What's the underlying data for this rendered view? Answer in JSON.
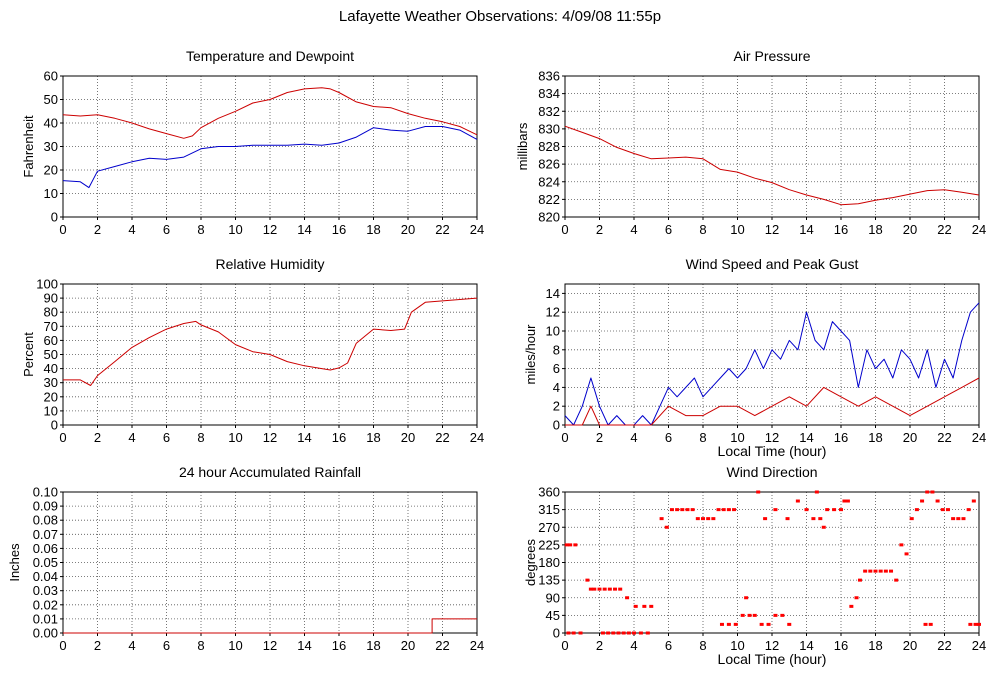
{
  "page": {
    "title": "Lafayette Weather Observations: 4/09/08 11:55p"
  },
  "chart_data": [
    {
      "id": "temp",
      "type": "line",
      "title": "Temperature and Dewpoint",
      "xlabel": "",
      "ylabel": "Fahrenheit",
      "xlim": [
        0,
        24
      ],
      "ylim": [
        0,
        60
      ],
      "xticks": [
        0,
        2,
        4,
        6,
        8,
        10,
        12,
        14,
        16,
        18,
        20,
        22,
        24
      ],
      "yticks": [
        0,
        10,
        20,
        30,
        40,
        50,
        60
      ],
      "ytick_labels": [
        "0",
        "10",
        "20",
        "30",
        "40",
        "50",
        "60"
      ],
      "grid": true,
      "series": [
        {
          "color": "#cc0000",
          "x": [
            0,
            1,
            2,
            3,
            4,
            5,
            6,
            7,
            7.5,
            8,
            9,
            10,
            11,
            12,
            13,
            14,
            15,
            15.5,
            16,
            17,
            18,
            19,
            20,
            21,
            22,
            23,
            24
          ],
          "y": [
            43.5,
            43,
            43.5,
            42,
            40,
            37.5,
            35.5,
            33.5,
            34.5,
            38,
            42,
            45,
            48.5,
            50,
            53,
            54.5,
            55,
            54.5,
            53,
            49,
            47,
            46.5,
            44,
            42,
            40.5,
            38.5,
            35
          ]
        },
        {
          "color": "#0000cc",
          "x": [
            0,
            1,
            1.5,
            2,
            3,
            4,
            5,
            6,
            7,
            8,
            9,
            10,
            11,
            12,
            13,
            14,
            15,
            16,
            17,
            18,
            19,
            20,
            21,
            22,
            23,
            24
          ],
          "y": [
            15.5,
            15,
            12.5,
            19.5,
            21.5,
            23.5,
            25,
            24.5,
            25.5,
            29,
            30,
            30,
            30.5,
            30.5,
            30.5,
            31,
            30.5,
            31.5,
            34,
            38,
            37,
            36.5,
            38.5,
            38.5,
            37,
            33
          ]
        }
      ]
    },
    {
      "id": "pressure",
      "type": "line",
      "title": "Air Pressure",
      "xlabel": "",
      "ylabel": "millibars",
      "xlim": [
        0,
        24
      ],
      "ylim": [
        820,
        836
      ],
      "xticks": [
        0,
        2,
        4,
        6,
        8,
        10,
        12,
        14,
        16,
        18,
        20,
        22,
        24
      ],
      "yticks": [
        820,
        822,
        824,
        826,
        828,
        830,
        832,
        834,
        836
      ],
      "ytick_labels": [
        "820",
        "822",
        "824",
        "826",
        "828",
        "830",
        "832",
        "834",
        "836"
      ],
      "grid": true,
      "series": [
        {
          "color": "#cc0000",
          "x": [
            0,
            1,
            2,
            3,
            4,
            5,
            6,
            7,
            8,
            9,
            10,
            11,
            12,
            13,
            14,
            15,
            16,
            17,
            18,
            19,
            20,
            21,
            22,
            23,
            24
          ],
          "y": [
            830.3,
            829.6,
            828.9,
            827.9,
            827.2,
            826.6,
            826.7,
            826.8,
            826.6,
            825.4,
            825.1,
            824.4,
            823.9,
            823.1,
            822.5,
            822,
            821.4,
            821.5,
            821.9,
            822.2,
            822.6,
            823,
            823.1,
            822.8,
            822.5
          ]
        }
      ]
    },
    {
      "id": "humidity",
      "type": "line",
      "title": "Relative Humidity",
      "xlabel": "",
      "ylabel": "Percent",
      "xlim": [
        0,
        24
      ],
      "ylim": [
        0,
        100
      ],
      "xticks": [
        0,
        2,
        4,
        6,
        8,
        10,
        12,
        14,
        16,
        18,
        20,
        22,
        24
      ],
      "yticks": [
        0,
        10,
        20,
        30,
        40,
        50,
        60,
        70,
        80,
        90,
        100
      ],
      "ytick_labels": [
        "0",
        "10",
        "20",
        "30",
        "40",
        "50",
        "60",
        "70",
        "80",
        "90",
        "100"
      ],
      "grid": true,
      "series": [
        {
          "color": "#cc0000",
          "x": [
            0,
            1,
            1.6,
            2,
            3,
            4,
            5,
            6,
            7,
            7.7,
            8,
            9,
            10,
            11,
            12,
            13,
            14,
            15,
            15.5,
            16,
            16.5,
            17,
            18,
            19,
            19.8,
            20.2,
            21,
            22,
            23,
            24
          ],
          "y": [
            32,
            32,
            28,
            35,
            45,
            55,
            62,
            68,
            72,
            73.5,
            71,
            66,
            57,
            52,
            50,
            45,
            42,
            40,
            39,
            40.5,
            44,
            58,
            68,
            67,
            68,
            80,
            87,
            88,
            89,
            90
          ]
        }
      ]
    },
    {
      "id": "wind",
      "type": "line",
      "title": "Wind Speed and Peak Gust",
      "xlabel": "Local Time (hour)",
      "ylabel": "miles/hour",
      "xlim": [
        0,
        24
      ],
      "ylim": [
        0,
        15
      ],
      "xticks": [
        0,
        2,
        4,
        6,
        8,
        10,
        12,
        14,
        16,
        18,
        20,
        22,
        24
      ],
      "yticks": [
        0,
        2,
        4,
        6,
        8,
        10,
        12,
        14
      ],
      "ytick_labels": [
        "0",
        "2",
        "4",
        "6",
        "8",
        "10",
        "12",
        "14"
      ],
      "grid": true,
      "series": [
        {
          "color": "#0000cc",
          "x": [
            0,
            0.5,
            1,
            1.5,
            2,
            2.5,
            3,
            3.5,
            4,
            4.5,
            5,
            5.5,
            6,
            6.5,
            7,
            7.5,
            8,
            8.5,
            9,
            9.5,
            10,
            10.5,
            11,
            11.5,
            12,
            12.5,
            13,
            13.5,
            14,
            14.5,
            15,
            15.5,
            16,
            16.5,
            17,
            17.5,
            18,
            18.5,
            19,
            19.5,
            20,
            20.5,
            21,
            21.5,
            22,
            22.5,
            23,
            23.5,
            24
          ],
          "y": [
            1,
            0,
            2,
            5,
            2,
            0,
            1,
            0,
            0,
            1,
            0,
            2,
            4,
            3,
            4,
            5,
            3,
            4,
            5,
            6,
            5,
            6,
            8,
            6,
            8,
            7,
            9,
            8,
            12,
            9,
            8,
            11,
            10,
            9,
            4,
            8,
            6,
            7,
            5,
            8,
            7,
            5,
            8,
            4,
            7,
            5,
            9,
            12,
            13
          ]
        },
        {
          "color": "#cc0000",
          "x": [
            0,
            1,
            1.5,
            2,
            3,
            4,
            5,
            6,
            7,
            8,
            9,
            10,
            11,
            12,
            13,
            14,
            15,
            16,
            17,
            18,
            19,
            20,
            21,
            22,
            23,
            24
          ],
          "y": [
            0,
            0,
            2,
            0,
            0,
            0,
            0,
            2,
            1,
            1,
            2,
            2,
            1,
            2,
            3,
            2,
            4,
            3,
            2,
            3,
            2,
            1,
            2,
            3,
            4,
            5
          ]
        }
      ]
    },
    {
      "id": "rain",
      "type": "line",
      "title": "24 hour Accumulated Rainfall",
      "xlabel": "",
      "ylabel": "Inches",
      "xlim": [
        0,
        24
      ],
      "ylim": [
        0,
        0.1
      ],
      "xticks": [
        0,
        2,
        4,
        6,
        8,
        10,
        12,
        14,
        16,
        18,
        20,
        22,
        24
      ],
      "yticks": [
        0,
        0.01,
        0.02,
        0.03,
        0.04,
        0.05,
        0.06,
        0.07,
        0.08,
        0.09,
        0.1
      ],
      "ytick_labels": [
        "0.00",
        "0.01",
        "0.02",
        "0.03",
        "0.04",
        "0.05",
        "0.06",
        "0.07",
        "0.08",
        "0.09",
        "0.10"
      ],
      "grid": true,
      "series": [
        {
          "color": "#cc0000",
          "x": [
            0,
            21.4,
            21.4,
            24
          ],
          "y": [
            0,
            0,
            0.01,
            0.01
          ]
        }
      ]
    },
    {
      "id": "direction",
      "type": "scatter",
      "title": "Wind Direction",
      "xlabel": "Local Time (hour)",
      "ylabel": "degrees",
      "xlim": [
        0,
        24
      ],
      "ylim": [
        0,
        360
      ],
      "xticks": [
        0,
        2,
        4,
        6,
        8,
        10,
        12,
        14,
        16,
        18,
        20,
        22,
        24
      ],
      "yticks": [
        0,
        45,
        90,
        135,
        180,
        225,
        270,
        315,
        360
      ],
      "ytick_labels": [
        "0",
        "45",
        "90",
        "135",
        "180",
        "225",
        "270",
        "315",
        "360"
      ],
      "grid": true,
      "series": [
        {
          "color": "#ff0000",
          "x": [
            0.1,
            0.3,
            0.6,
            0.9,
            0.2,
            0.5,
            1.3,
            1.5,
            1.7,
            2.0,
            2.3,
            2.6,
            2.9,
            3.2,
            2.2,
            2.5,
            2.8,
            3.1,
            3.4,
            3.7,
            4.0,
            4.4,
            4.8,
            3.6,
            4.1,
            4.6,
            5.0,
            5.6,
            5.9,
            6.2,
            6.5,
            6.8,
            7.1,
            7.4,
            7.7,
            8.0,
            8.3,
            8.6,
            8.9,
            9.2,
            9.5,
            9.8,
            9.1,
            9.5,
            9.9,
            10.3,
            10.7,
            11.0,
            11.4,
            11.8,
            12.2,
            12.6,
            13.0,
            10.5,
            11.2,
            11.6,
            12.2,
            12.9,
            13.5,
            14.0,
            14.4,
            14.8,
            15.2,
            15.6,
            16.0,
            16.4,
            14.6,
            15.0,
            16.2,
            16.6,
            16.9,
            17.1,
            17.4,
            17.7,
            18.0,
            18.3,
            18.6,
            18.9,
            19.2,
            19.5,
            19.8,
            20.1,
            20.4,
            20.7,
            21.0,
            21.3,
            21.6,
            21.9,
            22.2,
            22.5,
            22.8,
            23.1,
            23.4,
            23.7,
            24.0,
            20.9,
            21.2,
            23.5,
            23.8
          ],
          "y": [
            225,
            225,
            225,
            0,
            0,
            0,
            135,
            112,
            112,
            112,
            112,
            112,
            112,
            112,
            0,
            0,
            0,
            0,
            0,
            0,
            0,
            0,
            0,
            90,
            68,
            68,
            68,
            292,
            270,
            315,
            315,
            315,
            315,
            315,
            292,
            292,
            292,
            292,
            315,
            315,
            315,
            315,
            22,
            22,
            22,
            45,
            45,
            45,
            22,
            22,
            45,
            45,
            22,
            90,
            360,
            292,
            315,
            292,
            337,
            315,
            292,
            292,
            315,
            315,
            315,
            337,
            360,
            270,
            337,
            68,
            90,
            135,
            158,
            158,
            158,
            158,
            158,
            158,
            135,
            225,
            202,
            292,
            315,
            337,
            360,
            360,
            337,
            315,
            315,
            292,
            292,
            292,
            315,
            337,
            22,
            22,
            22,
            22,
            22
          ]
        }
      ]
    }
  ]
}
